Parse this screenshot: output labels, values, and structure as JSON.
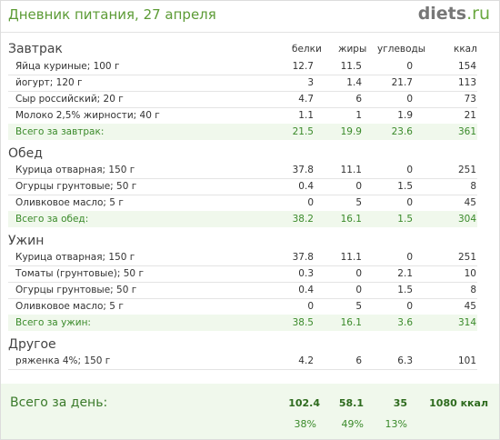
{
  "header": {
    "title": "Дневник питания, 27 апреля",
    "logo_main": "diets",
    "logo_tld": ".ru"
  },
  "columns": {
    "protein": "белки",
    "fat": "жиры",
    "carbs": "углеводы",
    "kcal": "ккал"
  },
  "sections": [
    {
      "title": "Завтрак",
      "items": [
        {
          "name": "Яйца куриные; 100 г",
          "protein": "12.7",
          "fat": "11.5",
          "carbs": "0",
          "kcal": "154"
        },
        {
          "name": "йогурт; 120 г",
          "protein": "3",
          "fat": "1.4",
          "carbs": "21.7",
          "kcal": "113"
        },
        {
          "name": "Сыр российский; 20 г",
          "protein": "4.7",
          "fat": "6",
          "carbs": "0",
          "kcal": "73"
        },
        {
          "name": "Молоко 2,5% жирности; 40 г",
          "protein": "1.1",
          "fat": "1",
          "carbs": "1.9",
          "kcal": "21"
        }
      ],
      "total": {
        "name": "Всего за завтрак:",
        "protein": "21.5",
        "fat": "19.9",
        "carbs": "23.6",
        "kcal": "361"
      }
    },
    {
      "title": "Обед",
      "items": [
        {
          "name": "Курица отварная; 150 г",
          "protein": "37.8",
          "fat": "11.1",
          "carbs": "0",
          "kcal": "251"
        },
        {
          "name": "Огурцы грунтовые; 50 г",
          "protein": "0.4",
          "fat": "0",
          "carbs": "1.5",
          "kcal": "8"
        },
        {
          "name": "Оливковое масло; 5 г",
          "protein": "0",
          "fat": "5",
          "carbs": "0",
          "kcal": "45"
        }
      ],
      "total": {
        "name": "Всего за обед:",
        "protein": "38.2",
        "fat": "16.1",
        "carbs": "1.5",
        "kcal": "304"
      }
    },
    {
      "title": "Ужин",
      "items": [
        {
          "name": "Курица отварная; 150 г",
          "protein": "37.8",
          "fat": "11.1",
          "carbs": "0",
          "kcal": "251"
        },
        {
          "name": "Томаты (грунтовые); 50 г",
          "protein": "0.3",
          "fat": "0",
          "carbs": "2.1",
          "kcal": "10"
        },
        {
          "name": "Огурцы грунтовые; 50 г",
          "protein": "0.4",
          "fat": "0",
          "carbs": "1.5",
          "kcal": "8"
        },
        {
          "name": "Оливковое масло; 5 г",
          "protein": "0",
          "fat": "5",
          "carbs": "0",
          "kcal": "45"
        }
      ],
      "total": {
        "name": "Всего за ужин:",
        "protein": "38.5",
        "fat": "16.1",
        "carbs": "3.6",
        "kcal": "314"
      }
    },
    {
      "title": "Другое",
      "items": [
        {
          "name": "ряженка 4%; 150 г",
          "protein": "4.2",
          "fat": "6",
          "carbs": "6.3",
          "kcal": "101"
        }
      ]
    }
  ],
  "day_total": {
    "label": "Всего за день:",
    "protein": "102.4",
    "fat": "58.1",
    "carbs": "35",
    "kcal": "1080 ккал",
    "protein_pct": "38%",
    "fat_pct": "49%",
    "carbs_pct": "13%"
  }
}
